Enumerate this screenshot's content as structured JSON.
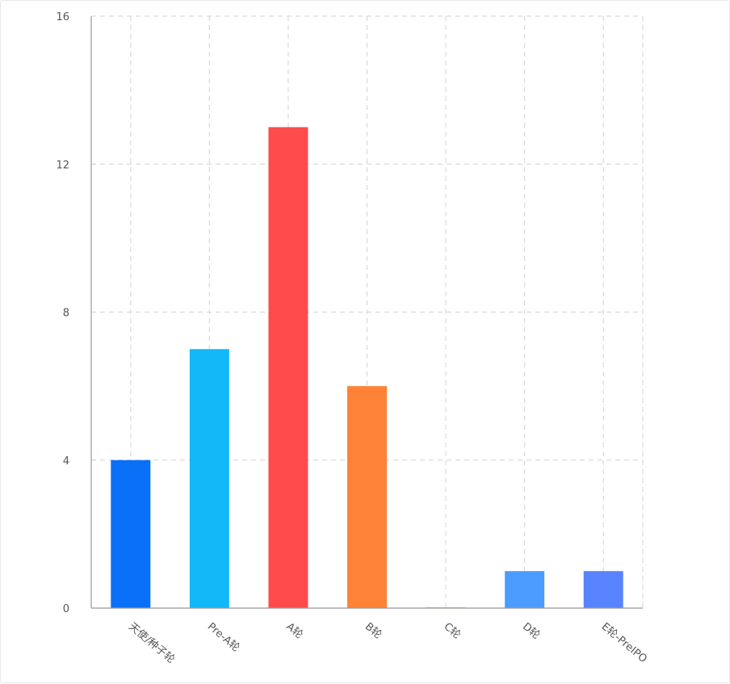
{
  "chart_data": {
    "type": "bar",
    "title": "",
    "xlabel": "",
    "ylabel": "",
    "categories": [
      "天使/种子轮",
      "Pre-A轮",
      "A轮",
      "B轮",
      "C轮",
      "D轮",
      "E轮-PreIPO"
    ],
    "values": [
      4,
      7,
      13,
      6,
      0,
      1,
      1
    ],
    "colors": [
      "#0a70f7",
      "#12b8f7",
      "#ff4b4b",
      "#ff8236",
      "#f5c53d",
      "#4c9cff",
      "#5883ff"
    ],
    "ylim": [
      0,
      16
    ],
    "yticks": [
      0,
      4,
      8,
      12,
      16
    ],
    "ytick_labels": [
      "0",
      "4",
      "8",
      "12",
      "16"
    ],
    "grid": true,
    "legend": "none"
  }
}
